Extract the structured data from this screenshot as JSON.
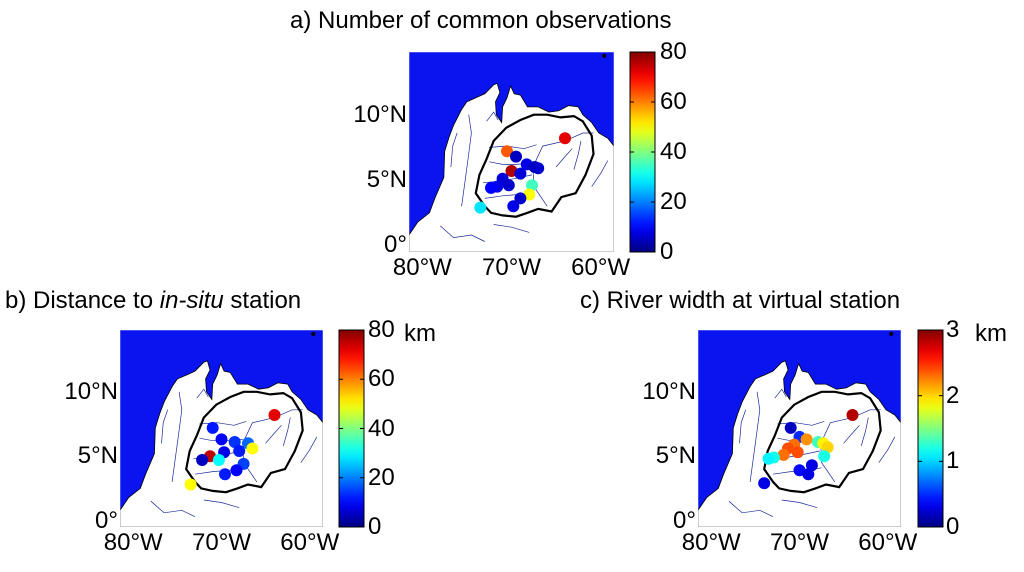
{
  "colors": {
    "sea": "#0a14ee",
    "land": "#ffffff",
    "basin": "#000000",
    "river": "#1b2a9a"
  },
  "axes": {
    "lat_ticks": [
      "0°",
      "5°N",
      "10°N"
    ],
    "lon_ticks": [
      "80°W",
      "70°W",
      "60°W"
    ]
  },
  "panels": [
    {
      "id": "a",
      "title": "a) Number of common observations",
      "colorbar": {
        "min": 0,
        "max": 80,
        "ticks": [
          "0",
          "20",
          "40",
          "60",
          "80"
        ],
        "unit": ""
      },
      "stations": [
        {
          "lon": -70.5,
          "lat": 7.2,
          "v": 63
        },
        {
          "lon": -64.0,
          "lat": 8.2,
          "v": 72
        },
        {
          "lon": -69.5,
          "lat": 6.8,
          "v": 5
        },
        {
          "lon": -70.0,
          "lat": 5.7,
          "v": 76
        },
        {
          "lon": -71.0,
          "lat": 5.1,
          "v": 7
        },
        {
          "lon": -70.3,
          "lat": 4.6,
          "v": 6
        },
        {
          "lon": -71.6,
          "lat": 4.5,
          "v": 8
        },
        {
          "lon": -72.3,
          "lat": 4.4,
          "v": 10
        },
        {
          "lon": -68.3,
          "lat": 6.2,
          "v": 8
        },
        {
          "lon": -67.4,
          "lat": 6.0,
          "v": 5
        },
        {
          "lon": -67.0,
          "lat": 5.9,
          "v": 6
        },
        {
          "lon": -67.7,
          "lat": 4.6,
          "v": 35
        },
        {
          "lon": -68.0,
          "lat": 3.9,
          "v": 50
        },
        {
          "lon": -69.0,
          "lat": 3.6,
          "v": 6
        },
        {
          "lon": -69.8,
          "lat": 3.0,
          "v": 8
        },
        {
          "lon": -73.5,
          "lat": 2.9,
          "v": 28
        },
        {
          "lon": -69.0,
          "lat": 5.5,
          "v": 7
        }
      ]
    },
    {
      "id": "b",
      "title_prefix": "b) Distance to ",
      "title_italic": "in-situ",
      "title_suffix": " station",
      "colorbar": {
        "min": 0,
        "max": 80,
        "ticks": [
          "0",
          "20",
          "40",
          "60",
          "80"
        ],
        "unit": "km"
      },
      "stations": [
        {
          "lon": -64.0,
          "lat": 8.2,
          "v": 72
        },
        {
          "lon": -71.0,
          "lat": 7.2,
          "v": 12
        },
        {
          "lon": -70.0,
          "lat": 6.3,
          "v": 10
        },
        {
          "lon": -68.5,
          "lat": 6.1,
          "v": 14
        },
        {
          "lon": -67.0,
          "lat": 6.0,
          "v": 18
        },
        {
          "lon": -66.5,
          "lat": 5.6,
          "v": 50
        },
        {
          "lon": -68.0,
          "lat": 5.4,
          "v": 12
        },
        {
          "lon": -69.7,
          "lat": 5.3,
          "v": 8
        },
        {
          "lon": -71.3,
          "lat": 5.0,
          "v": 75
        },
        {
          "lon": -72.2,
          "lat": 4.7,
          "v": 5
        },
        {
          "lon": -70.3,
          "lat": 4.7,
          "v": 30
        },
        {
          "lon": -67.5,
          "lat": 4.4,
          "v": 15
        },
        {
          "lon": -68.3,
          "lat": 3.9,
          "v": 10
        },
        {
          "lon": -69.6,
          "lat": 3.6,
          "v": 12
        },
        {
          "lon": -73.5,
          "lat": 2.8,
          "v": 50
        }
      ]
    },
    {
      "id": "c",
      "title": "c) River width at virtual station",
      "colorbar": {
        "min": 0,
        "max": 3,
        "ticks": [
          "0",
          "1",
          "2",
          "3"
        ],
        "unit": "km"
      },
      "stations": [
        {
          "lon": -64.0,
          "lat": 8.2,
          "v": 2.85
        },
        {
          "lon": -71.0,
          "lat": 7.2,
          "v": 0.2
        },
        {
          "lon": -70.0,
          "lat": 6.5,
          "v": 0.5
        },
        {
          "lon": -69.2,
          "lat": 6.3,
          "v": 2.2
        },
        {
          "lon": -67.9,
          "lat": 6.1,
          "v": 1.3
        },
        {
          "lon": -67.3,
          "lat": 6.0,
          "v": 1.9
        },
        {
          "lon": -66.8,
          "lat": 5.7,
          "v": 2.0
        },
        {
          "lon": -70.6,
          "lat": 5.9,
          "v": 2.3
        },
        {
          "lon": -71.3,
          "lat": 5.6,
          "v": 2.4
        },
        {
          "lon": -70.2,
          "lat": 5.3,
          "v": 2.4
        },
        {
          "lon": -71.8,
          "lat": 5.1,
          "v": 2.3
        },
        {
          "lon": -72.9,
          "lat": 4.9,
          "v": 1.2
        },
        {
          "lon": -73.5,
          "lat": 4.8,
          "v": 1.1
        },
        {
          "lon": -67.2,
          "lat": 5.0,
          "v": 1.2
        },
        {
          "lon": -68.6,
          "lat": 4.3,
          "v": 0.3
        },
        {
          "lon": -70.0,
          "lat": 3.9,
          "v": 0.4
        },
        {
          "lon": -74.0,
          "lat": 2.9,
          "v": 0.3
        },
        {
          "lon": -69.0,
          "lat": 3.6,
          "v": 0.3
        }
      ]
    }
  ]
}
